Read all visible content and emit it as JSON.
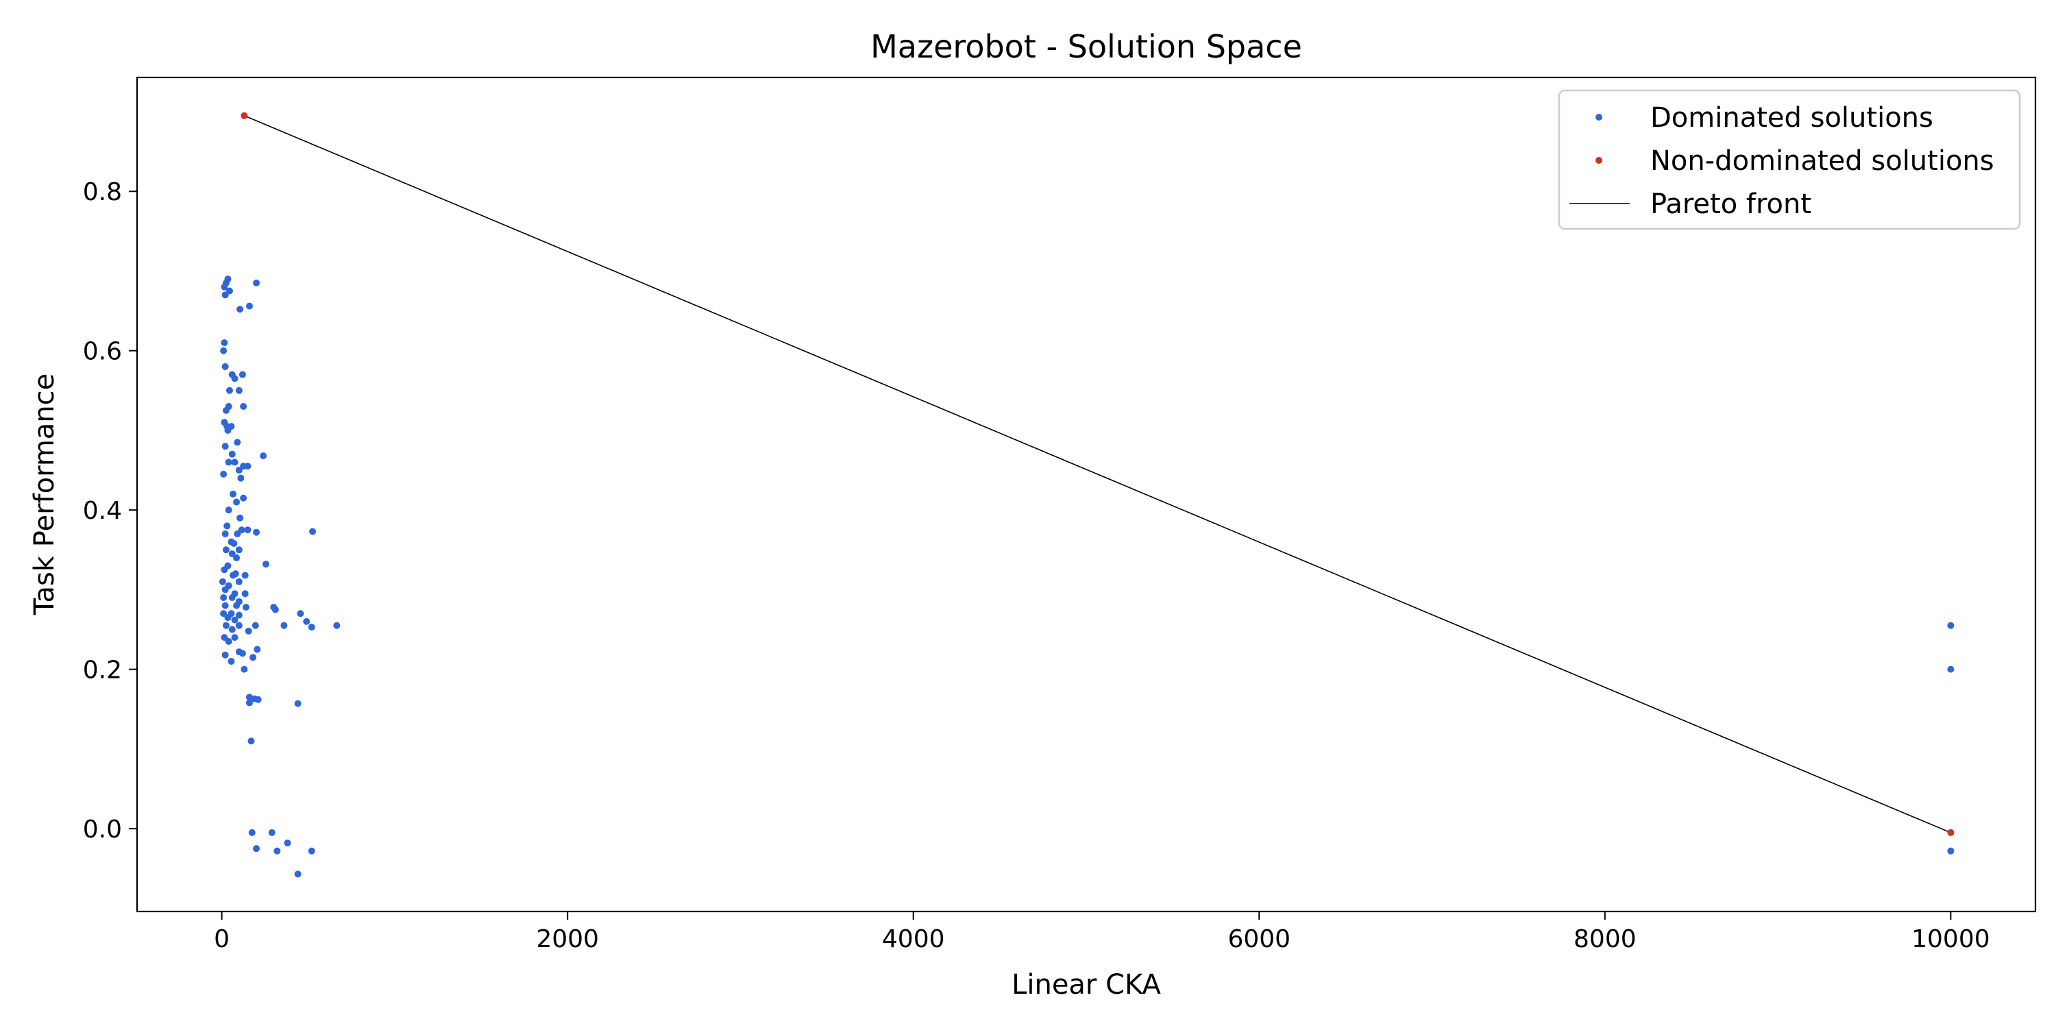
{
  "chart_data": {
    "type": "scatter",
    "title": "Mazerobot - Solution Space",
    "xlabel": "Linear CKA",
    "ylabel": "Task Performance",
    "xlim": [
      -490,
      10490
    ],
    "ylim": [
      -0.104,
      0.943
    ],
    "xticks": [
      0,
      2000,
      4000,
      6000,
      8000,
      10000
    ],
    "xtick_labels": [
      "0",
      "2000",
      "4000",
      "6000",
      "8000",
      "10000"
    ],
    "yticks": [
      0.0,
      0.2,
      0.4,
      0.6,
      0.8
    ],
    "ytick_labels": [
      "0.0",
      "0.2",
      "0.4",
      "0.6",
      "0.8"
    ],
    "grid": false,
    "legend_position": "top-right",
    "colors": {
      "dominated": "#2f66d8",
      "non_dominated": "#d03020",
      "pareto": "#000000"
    },
    "legend": [
      {
        "key": "dominated",
        "label": "Dominated solutions",
        "kind": "dot"
      },
      {
        "key": "non_dominated",
        "label": "Non-dominated solutions",
        "kind": "dot"
      },
      {
        "key": "pareto",
        "label": "Pareto front",
        "kind": "line"
      }
    ],
    "series": [
      {
        "name": "Dominated solutions",
        "key": "dominated",
        "points": [
          [
            15,
            0.68
          ],
          [
            25,
            0.685
          ],
          [
            35,
            0.69
          ],
          [
            20,
            0.67
          ],
          [
            45,
            0.675
          ],
          [
            200,
            0.685
          ],
          [
            105,
            0.652
          ],
          [
            160,
            0.656
          ],
          [
            15,
            0.61
          ],
          [
            10,
            0.6
          ],
          [
            20,
            0.58
          ],
          [
            60,
            0.57
          ],
          [
            75,
            0.565
          ],
          [
            120,
            0.57
          ],
          [
            45,
            0.55
          ],
          [
            100,
            0.55
          ],
          [
            25,
            0.525
          ],
          [
            40,
            0.53
          ],
          [
            125,
            0.53
          ],
          [
            15,
            0.51
          ],
          [
            30,
            0.505
          ],
          [
            55,
            0.505
          ],
          [
            35,
            0.5
          ],
          [
            20,
            0.48
          ],
          [
            90,
            0.485
          ],
          [
            60,
            0.47
          ],
          [
            240,
            0.468
          ],
          [
            40,
            0.46
          ],
          [
            75,
            0.46
          ],
          [
            125,
            0.455
          ],
          [
            150,
            0.455
          ],
          [
            100,
            0.45
          ],
          [
            10,
            0.445
          ],
          [
            110,
            0.44
          ],
          [
            65,
            0.42
          ],
          [
            125,
            0.415
          ],
          [
            85,
            0.41
          ],
          [
            40,
            0.4
          ],
          [
            105,
            0.39
          ],
          [
            30,
            0.38
          ],
          [
            115,
            0.375
          ],
          [
            150,
            0.375
          ],
          [
            200,
            0.372
          ],
          [
            20,
            0.37
          ],
          [
            90,
            0.37
          ],
          [
            525,
            0.373
          ],
          [
            55,
            0.36
          ],
          [
            70,
            0.358
          ],
          [
            25,
            0.35
          ],
          [
            100,
            0.35
          ],
          [
            60,
            0.345
          ],
          [
            85,
            0.34
          ],
          [
            35,
            0.33
          ],
          [
            255,
            0.332
          ],
          [
            15,
            0.325
          ],
          [
            80,
            0.32
          ],
          [
            135,
            0.318
          ],
          [
            65,
            0.318
          ],
          [
            5,
            0.31
          ],
          [
            100,
            0.31
          ],
          [
            40,
            0.305
          ],
          [
            20,
            0.3
          ],
          [
            75,
            0.295
          ],
          [
            135,
            0.295
          ],
          [
            10,
            0.29
          ],
          [
            60,
            0.29
          ],
          [
            100,
            0.285
          ],
          [
            20,
            0.28
          ],
          [
            85,
            0.28
          ],
          [
            140,
            0.278
          ],
          [
            300,
            0.278
          ],
          [
            310,
            0.275
          ],
          [
            10,
            0.27
          ],
          [
            55,
            0.27
          ],
          [
            100,
            0.268
          ],
          [
            455,
            0.27
          ],
          [
            35,
            0.265
          ],
          [
            75,
            0.262
          ],
          [
            490,
            0.26
          ],
          [
            25,
            0.255
          ],
          [
            100,
            0.255
          ],
          [
            195,
            0.255
          ],
          [
            360,
            0.255
          ],
          [
            520,
            0.253
          ],
          [
            665,
            0.255
          ],
          [
            60,
            0.25
          ],
          [
            155,
            0.248
          ],
          [
            15,
            0.24
          ],
          [
            75,
            0.24
          ],
          [
            40,
            0.235
          ],
          [
            205,
            0.225
          ],
          [
            100,
            0.222
          ],
          [
            120,
            0.22
          ],
          [
            20,
            0.218
          ],
          [
            180,
            0.215
          ],
          [
            55,
            0.21
          ],
          [
            130,
            0.2
          ],
          [
            160,
            0.165
          ],
          [
            190,
            0.163
          ],
          [
            210,
            0.162
          ],
          [
            160,
            0.158
          ],
          [
            440,
            0.157
          ],
          [
            170,
            0.11
          ],
          [
            175,
            -0.005
          ],
          [
            290,
            -0.005
          ],
          [
            380,
            -0.018
          ],
          [
            200,
            -0.025
          ],
          [
            320,
            -0.028
          ],
          [
            520,
            -0.028
          ],
          [
            440,
            -0.057
          ],
          [
            10000,
            0.255
          ],
          [
            10000,
            0.2
          ],
          [
            10000,
            -0.028
          ]
        ]
      },
      {
        "name": "Non-dominated solutions",
        "key": "non_dominated",
        "points": [
          [
            130,
            0.895
          ],
          [
            10000,
            -0.005
          ]
        ]
      },
      {
        "name": "Pareto front",
        "key": "pareto",
        "points": [
          [
            130,
            0.895
          ],
          [
            10000,
            -0.005
          ]
        ]
      }
    ]
  }
}
